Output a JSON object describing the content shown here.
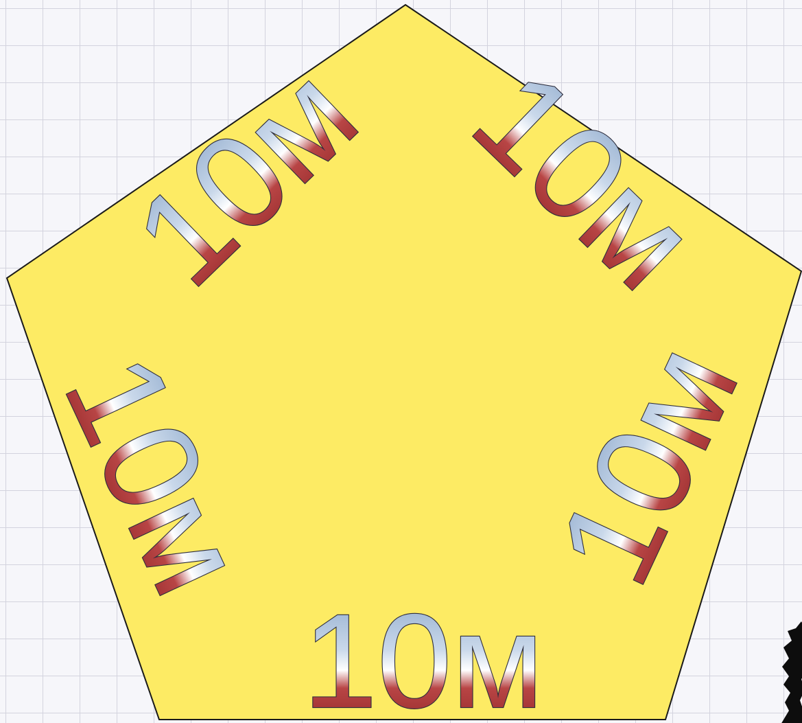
{
  "shape": {
    "type": "pentagon",
    "fill_color": "#fdeb64",
    "stroke_color": "#1a1a1a"
  },
  "labels": {
    "top_left": "10м",
    "top_right": "10м",
    "left": "10м",
    "right": "10м",
    "bottom": "10м"
  },
  "colors": {
    "label_gradient": [
      "#8aa6c9",
      "#ffffff",
      "#9a2a2a"
    ],
    "grid_line": "#d3d3de",
    "background": "#f6f6fa"
  }
}
